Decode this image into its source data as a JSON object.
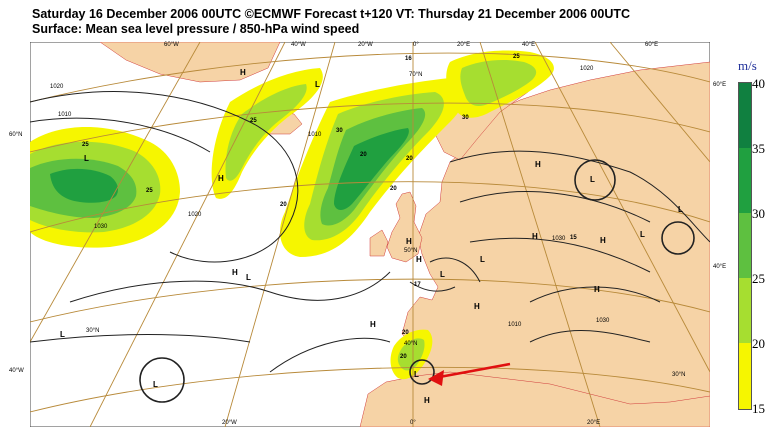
{
  "header": {
    "line1": "Saturday 16 December 2006 00UTC ©ECMWF Forecast t+120 VT: Thursday 21 December 2006 00UTC",
    "line2": "Surface: Mean sea level pressure / 850-hPa wind speed"
  },
  "colors": {
    "ocean": "#ffffff",
    "land": "#f6d3a6",
    "w15": "#f6f600",
    "w20": "#a6de30",
    "w25": "#5ec040",
    "w30": "#20a040",
    "w35": "#108040",
    "isobar": "#222222",
    "graticule": "#b88a3a",
    "arrow": "#e01010",
    "coast": "#d03a3a"
  },
  "legend": {
    "unit": "m/s",
    "ticks": [
      "40",
      "35",
      "30",
      "25",
      "20",
      "15"
    ]
  },
  "graticule_labels": {
    "top": [
      "60°W",
      "40°W",
      "20°W",
      "0°",
      "20°E",
      "40°E",
      "60°E"
    ],
    "bottom": [
      "20°W",
      "0°",
      "20°E"
    ],
    "left": [
      "60°N",
      "40°W",
      "30°N"
    ],
    "right": [
      "60°E",
      "40°E",
      "30°N"
    ],
    "inner": [
      "70°N",
      "50°N",
      "40°N"
    ]
  },
  "pressure_systems": [
    "H",
    "H",
    "H",
    "H",
    "H",
    "H",
    "H",
    "H",
    "H",
    "H",
    "H",
    "H",
    "L",
    "L",
    "L",
    "L",
    "L",
    "L",
    "L",
    "L",
    "L",
    "L",
    "L"
  ],
  "isobar_values": [
    "1020",
    "1010",
    "1020",
    "1030",
    "1010",
    "1020",
    "1030",
    "1010",
    "1030"
  ],
  "wind_labels": [
    "25",
    "25",
    "25",
    "30",
    "20",
    "20",
    "20",
    "30",
    "15",
    "20",
    "20",
    "16",
    "25",
    "17",
    "20"
  ]
}
